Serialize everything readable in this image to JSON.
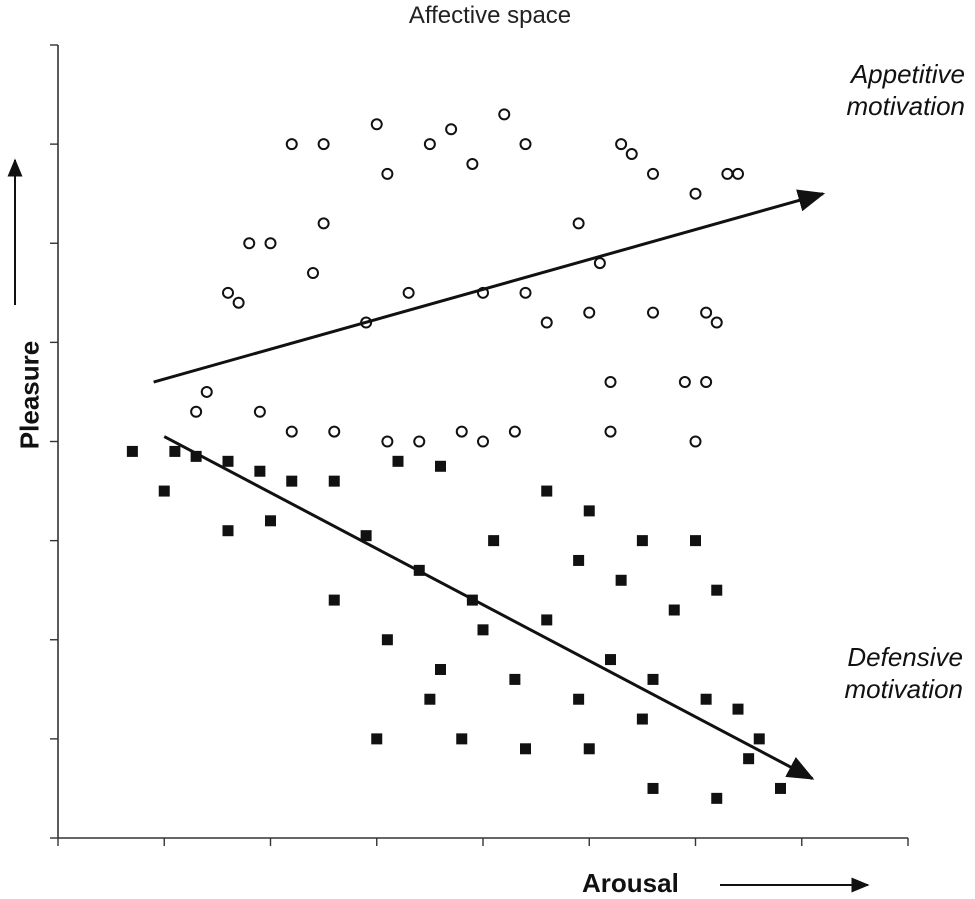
{
  "chart_data": {
    "type": "scatter",
    "title": "Affective space",
    "xlabel": "Arousal",
    "ylabel": "Pleasure",
    "xlim": [
      0,
      8
    ],
    "ylim": [
      0,
      8
    ],
    "grid": false,
    "legend": "none",
    "annotations": [
      {
        "text_lines": [
          "Appetitive",
          "motivation"
        ],
        "position": "top-right"
      },
      {
        "text_lines": [
          "Defensive",
          "motivation"
        ],
        "position": "bottom-right"
      }
    ],
    "trend_lines": [
      {
        "series": "appetitive",
        "from": [
          0.9,
          4.6
        ],
        "to": [
          7.2,
          6.5
        ],
        "arrow": "end"
      },
      {
        "series": "defensive",
        "from": [
          1.0,
          4.05
        ],
        "to": [
          7.1,
          0.6
        ],
        "arrow": "end"
      }
    ],
    "series": [
      {
        "key": "appetitive",
        "marker": "circle",
        "points": [
          [
            2.2,
            7.0
          ],
          [
            2.5,
            7.0
          ],
          [
            3.0,
            7.2
          ],
          [
            3.5,
            7.0
          ],
          [
            3.7,
            7.15
          ],
          [
            4.2,
            7.3
          ],
          [
            4.4,
            7.0
          ],
          [
            5.3,
            7.0
          ],
          [
            5.4,
            6.9
          ],
          [
            6.0,
            6.5
          ],
          [
            5.6,
            6.7
          ],
          [
            6.3,
            6.7
          ],
          [
            6.4,
            6.7
          ],
          [
            2.5,
            6.2
          ],
          [
            1.8,
            6.0
          ],
          [
            2.0,
            6.0
          ],
          [
            1.6,
            5.5
          ],
          [
            1.7,
            5.4
          ],
          [
            2.4,
            5.7
          ],
          [
            3.3,
            5.5
          ],
          [
            2.9,
            5.2
          ],
          [
            4.0,
            5.5
          ],
          [
            4.4,
            5.5
          ],
          [
            4.6,
            5.2
          ],
          [
            5.0,
            5.3
          ],
          [
            5.6,
            5.3
          ],
          [
            6.1,
            5.3
          ],
          [
            6.2,
            5.2
          ],
          [
            5.2,
            4.6
          ],
          [
            5.9,
            4.6
          ],
          [
            1.4,
            4.5
          ],
          [
            1.3,
            4.3
          ],
          [
            1.9,
            4.3
          ],
          [
            2.2,
            4.1
          ],
          [
            2.6,
            4.1
          ],
          [
            3.1,
            4.0
          ],
          [
            3.4,
            4.0
          ],
          [
            3.8,
            4.1
          ],
          [
            4.3,
            4.1
          ],
          [
            5.2,
            4.1
          ],
          [
            6.0,
            4.0
          ],
          [
            6.1,
            4.6
          ],
          [
            4.0,
            4.0
          ],
          [
            5.1,
            5.8
          ],
          [
            4.9,
            6.2
          ],
          [
            3.1,
            6.7
          ],
          [
            3.9,
            6.8
          ]
        ]
      },
      {
        "key": "defensive",
        "marker": "square",
        "points": [
          [
            0.7,
            3.9
          ],
          [
            1.1,
            3.9
          ],
          [
            1.3,
            3.85
          ],
          [
            1.6,
            3.8
          ],
          [
            1.9,
            3.7
          ],
          [
            2.2,
            3.6
          ],
          [
            2.6,
            3.6
          ],
          [
            3.2,
            3.8
          ],
          [
            3.6,
            3.75
          ],
          [
            4.1,
            3.0
          ],
          [
            4.6,
            3.5
          ],
          [
            5.0,
            3.3
          ],
          [
            5.5,
            3.0
          ],
          [
            6.0,
            3.0
          ],
          [
            6.2,
            2.5
          ],
          [
            5.3,
            2.6
          ],
          [
            5.8,
            2.3
          ],
          [
            2.6,
            2.4
          ],
          [
            3.1,
            2.0
          ],
          [
            3.6,
            1.7
          ],
          [
            4.0,
            2.1
          ],
          [
            4.3,
            1.6
          ],
          [
            4.6,
            2.2
          ],
          [
            4.9,
            1.4
          ],
          [
            5.2,
            1.8
          ],
          [
            5.6,
            1.6
          ],
          [
            6.1,
            1.4
          ],
          [
            6.4,
            1.3
          ],
          [
            6.6,
            1.0
          ],
          [
            6.8,
            0.5
          ],
          [
            6.2,
            0.4
          ],
          [
            5.6,
            0.5
          ],
          [
            5.0,
            0.9
          ],
          [
            4.4,
            0.9
          ],
          [
            3.8,
            1.0
          ],
          [
            3.0,
            1.0
          ],
          [
            1.6,
            3.1
          ],
          [
            2.0,
            3.2
          ],
          [
            2.9,
            3.05
          ],
          [
            3.4,
            2.7
          ],
          [
            3.9,
            2.4
          ],
          [
            4.9,
            2.8
          ],
          [
            5.5,
            1.2
          ],
          [
            6.5,
            0.8
          ],
          [
            1.0,
            3.5
          ],
          [
            3.5,
            1.4
          ]
        ]
      }
    ]
  }
}
